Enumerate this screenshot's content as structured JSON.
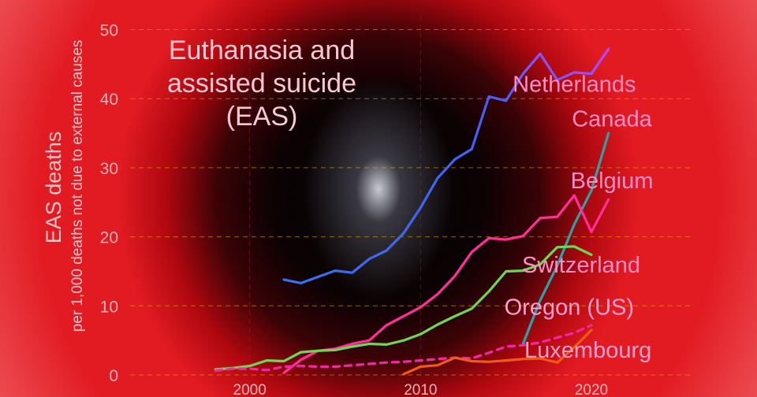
{
  "chart_data": {
    "type": "line",
    "title": [
      "Euthanasia and",
      "assisted suicide",
      "(EAS)"
    ],
    "ylabel": "EAS deaths",
    "ylabel_sub": "per 1,000 deaths not due to external causes",
    "xlabel": "",
    "xlim": [
      1993,
      2026
    ],
    "ylim": [
      0,
      52
    ],
    "xticks": [
      2000,
      2010,
      2020
    ],
    "yticks": [
      0,
      10,
      20,
      30,
      40,
      50
    ],
    "grid": true,
    "legend": "labels placed at series ends",
    "series": [
      {
        "name": "Netherlands",
        "color": "#5a6bff",
        "gradient": [
          "#3b6df0",
          "#a04fff"
        ],
        "dashed": false,
        "x": [
          2002,
          2003,
          2004,
          2005,
          2006,
          2007,
          2008,
          2009,
          2010,
          2011,
          2012,
          2013,
          2014,
          2015,
          2016,
          2017,
          2018,
          2019,
          2020,
          2021
        ],
        "y": [
          13.8,
          13.3,
          14.2,
          15.1,
          14.8,
          16.8,
          18.0,
          20.5,
          24.2,
          28.5,
          31.2,
          32.7,
          40.3,
          39.7,
          43.6,
          46.5,
          42.7,
          43.8,
          43.6,
          47.2
        ]
      },
      {
        "name": "Canada",
        "color": "#2fa0a8",
        "dashed": false,
        "x": [
          2016,
          2017,
          2018,
          2019,
          2020,
          2021
        ],
        "y": [
          4.5,
          10.8,
          15.8,
          21.8,
          26.7,
          35.0
        ]
      },
      {
        "name": "Belgium",
        "color": "#ff2f9a",
        "dashed": false,
        "x": [
          2002,
          2003,
          2004,
          2005,
          2006,
          2007,
          2008,
          2009,
          2010,
          2011,
          2012,
          2013,
          2014,
          2015,
          2016,
          2017,
          2018,
          2019,
          2020,
          2021
        ],
        "y": [
          0.3,
          2.2,
          3.5,
          3.8,
          4.5,
          5.0,
          7.2,
          8.5,
          9.8,
          11.7,
          14.3,
          17.8,
          19.8,
          19.6,
          20.1,
          22.7,
          22.9,
          26.0,
          20.7,
          25.4
        ]
      },
      {
        "name": "Switzerland",
        "color": "#6fd653",
        "dashed": false,
        "x": [
          1998,
          1999,
          2000,
          2001,
          2002,
          2003,
          2004,
          2005,
          2006,
          2007,
          2008,
          2009,
          2010,
          2011,
          2012,
          2013,
          2014,
          2015,
          2016,
          2017,
          2018,
          2019,
          2020
        ],
        "y": [
          0.8,
          1.0,
          1.3,
          2.1,
          2.0,
          3.3,
          3.5,
          3.6,
          4.1,
          4.5,
          4.4,
          5.0,
          5.9,
          7.3,
          8.5,
          9.6,
          12.1,
          15.0,
          15.1,
          16.0,
          18.5,
          18.6,
          17.4
        ]
      },
      {
        "name": "Oregon (US)",
        "color": "#f028a8",
        "dashed": true,
        "x": [
          1998,
          1999,
          2000,
          2001,
          2002,
          2003,
          2004,
          2005,
          2006,
          2007,
          2008,
          2009,
          2010,
          2011,
          2012,
          2013,
          2014,
          2015,
          2016,
          2017,
          2018,
          2019,
          2020
        ],
        "y": [
          0.6,
          0.9,
          0.9,
          0.7,
          1.2,
          1.3,
          1.2,
          1.2,
          1.4,
          1.6,
          1.8,
          1.9,
          2.1,
          2.3,
          2.5,
          2.4,
          3.2,
          4.1,
          4.3,
          4.7,
          5.4,
          6.1,
          7.2
        ]
      },
      {
        "name": "Luxembourg",
        "color": "#f25a14",
        "dashed": false,
        "x": [
          2009,
          2010,
          2011,
          2012,
          2013,
          2014,
          2015,
          2016,
          2017,
          2018,
          2019,
          2020
        ],
        "y": [
          0.1,
          1.2,
          1.4,
          2.5,
          2.0,
          1.9,
          2.1,
          2.3,
          2.4,
          1.8,
          4.0,
          6.5
        ]
      }
    ],
    "labels": [
      {
        "series": "Netherlands",
        "text": "Netherlands",
        "color": "#ff8ec8",
        "anchor_x": 2019.0,
        "anchor_y": 41.0
      },
      {
        "series": "Canada",
        "text": "Canada",
        "color": "#ff8ec8",
        "anchor_x": 2021.2,
        "anchor_y": 36.0
      },
      {
        "series": "Belgium",
        "text": "Belgium",
        "color": "#ff8ec8",
        "anchor_x": 2021.2,
        "anchor_y": 27.0
      },
      {
        "series": "Switzerland",
        "text": "Switzerland",
        "color": "#ff8ec8",
        "anchor_x": 2019.4,
        "anchor_y": 14.8
      },
      {
        "series": "Oregon (US)",
        "text": "Oregon (US)",
        "color": "#ff9fd0",
        "anchor_x": 2018.7,
        "anchor_y": 8.7
      },
      {
        "series": "Luxembourg",
        "text": "Luxembourg",
        "color": "#ff9fd0",
        "anchor_x": 2019.8,
        "anchor_y": 2.5
      }
    ]
  }
}
